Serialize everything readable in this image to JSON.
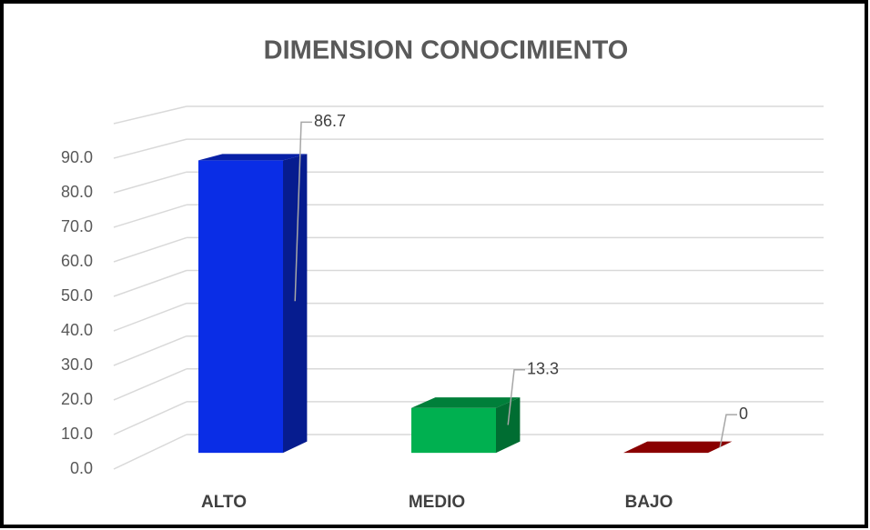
{
  "chart_data": {
    "type": "bar3d",
    "title": "DIMENSION CONOCIMIENTO",
    "categories": [
      "ALTO",
      "MEDIO",
      "BAJO"
    ],
    "values": [
      86.7,
      13.3,
      0
    ],
    "colors": [
      "#0a2de6",
      "#00b050",
      "#c00000"
    ],
    "ylim": [
      0,
      100
    ],
    "yticks": [
      {
        "value": 0,
        "label": "0.0"
      },
      {
        "value": 10,
        "label": "10.0"
      },
      {
        "value": 20,
        "label": "20.0"
      },
      {
        "value": 30,
        "label": "30.0"
      },
      {
        "value": 40,
        "label": "40.0"
      },
      {
        "value": 50,
        "label": "50.0"
      },
      {
        "value": 60,
        "label": "60.0"
      },
      {
        "value": 70,
        "label": "70.0"
      },
      {
        "value": 80,
        "label": "80.0"
      },
      {
        "value": 90,
        "label": "90.0"
      }
    ],
    "grid": true
  }
}
